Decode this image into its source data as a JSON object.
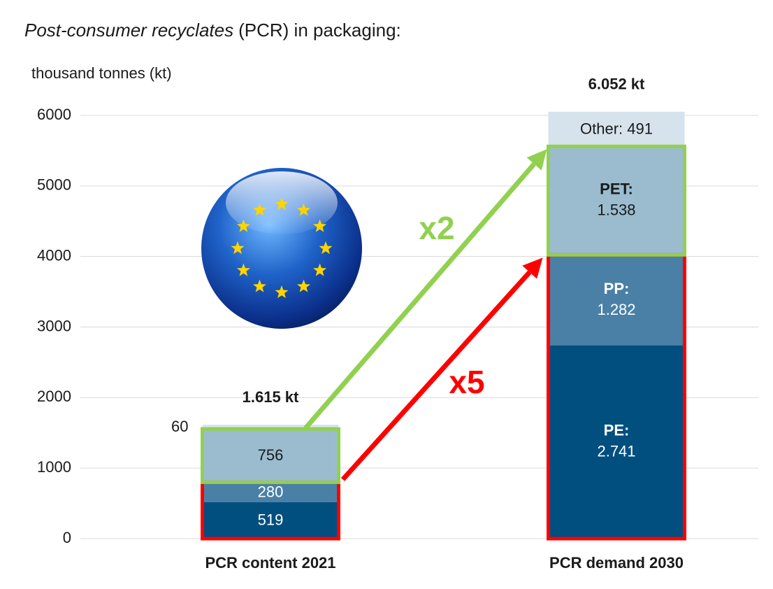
{
  "chart_data": {
    "type": "stacked_bar",
    "title_italic": "Post-consumer recyclates",
    "title": "(PCR) in packaging:",
    "y_label": "thousand tonnes (kt)",
    "categories": [
      "PCR content 2021",
      "PCR demand 2030"
    ],
    "series": [
      {
        "name": "PE:",
        "color": "#004f7f",
        "label_color": "#ffffff",
        "values": [
          519,
          2741
        ],
        "value_labels": [
          "519",
          "2.741"
        ],
        "label_position": [
          "inside",
          "inside"
        ]
      },
      {
        "name": "PP:",
        "color": "#4a80a6",
        "label_color": "#ffffff",
        "values": [
          280,
          1282
        ],
        "value_labels": [
          "280",
          "1.282"
        ],
        "label_position": [
          "inside",
          "inside"
        ]
      },
      {
        "name": "PET:",
        "color": "#9bbccf",
        "label_color": "#1a1a1a",
        "values": [
          756,
          1538
        ],
        "value_labels": [
          "756",
          "1.538"
        ],
        "label_position": [
          "inside",
          "inside"
        ]
      },
      {
        "color": "#d6e3ec",
        "label_color": "#1a1a1a",
        "values": [
          60,
          491
        ],
        "value_labels": [
          "60",
          "Other: 491"
        ],
        "label_position": [
          "left",
          "inside"
        ]
      }
    ],
    "named_category": 1,
    "totals": [
      1615,
      6052
    ],
    "total_labels": [
      "1.615 kt",
      "6.052 kt"
    ],
    "ylim": [
      0,
      6000
    ],
    "yticks": [
      0,
      1000,
      2000,
      3000,
      4000,
      5000,
      6000
    ],
    "grid": true,
    "annotations": [
      {
        "text": "x2",
        "color": "#92d050"
      },
      {
        "text": "x5",
        "color": "#ff0000"
      }
    ]
  }
}
